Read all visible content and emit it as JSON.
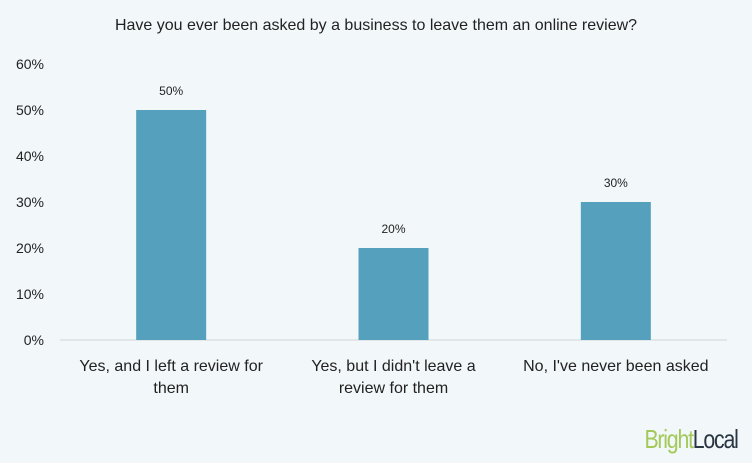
{
  "chart_data": {
    "type": "bar",
    "title": "Have you ever been asked by a business to leave them an online review?",
    "categories": [
      [
        "Yes, and I left a review for",
        "them"
      ],
      [
        "Yes, but I didn't leave a",
        "review for them"
      ],
      [
        "No, I've never been asked"
      ]
    ],
    "values": [
      50,
      20,
      30
    ],
    "data_labels": [
      "50%",
      "20%",
      "30%"
    ],
    "yticks": [
      "0%",
      "10%",
      "20%",
      "30%",
      "40%",
      "50%",
      "60%"
    ],
    "ylim": [
      0,
      60
    ],
    "grid": false,
    "legend": "none",
    "bar_color": "#55a1bd"
  },
  "logo": {
    "part1": "Bright",
    "part2": "Local"
  }
}
